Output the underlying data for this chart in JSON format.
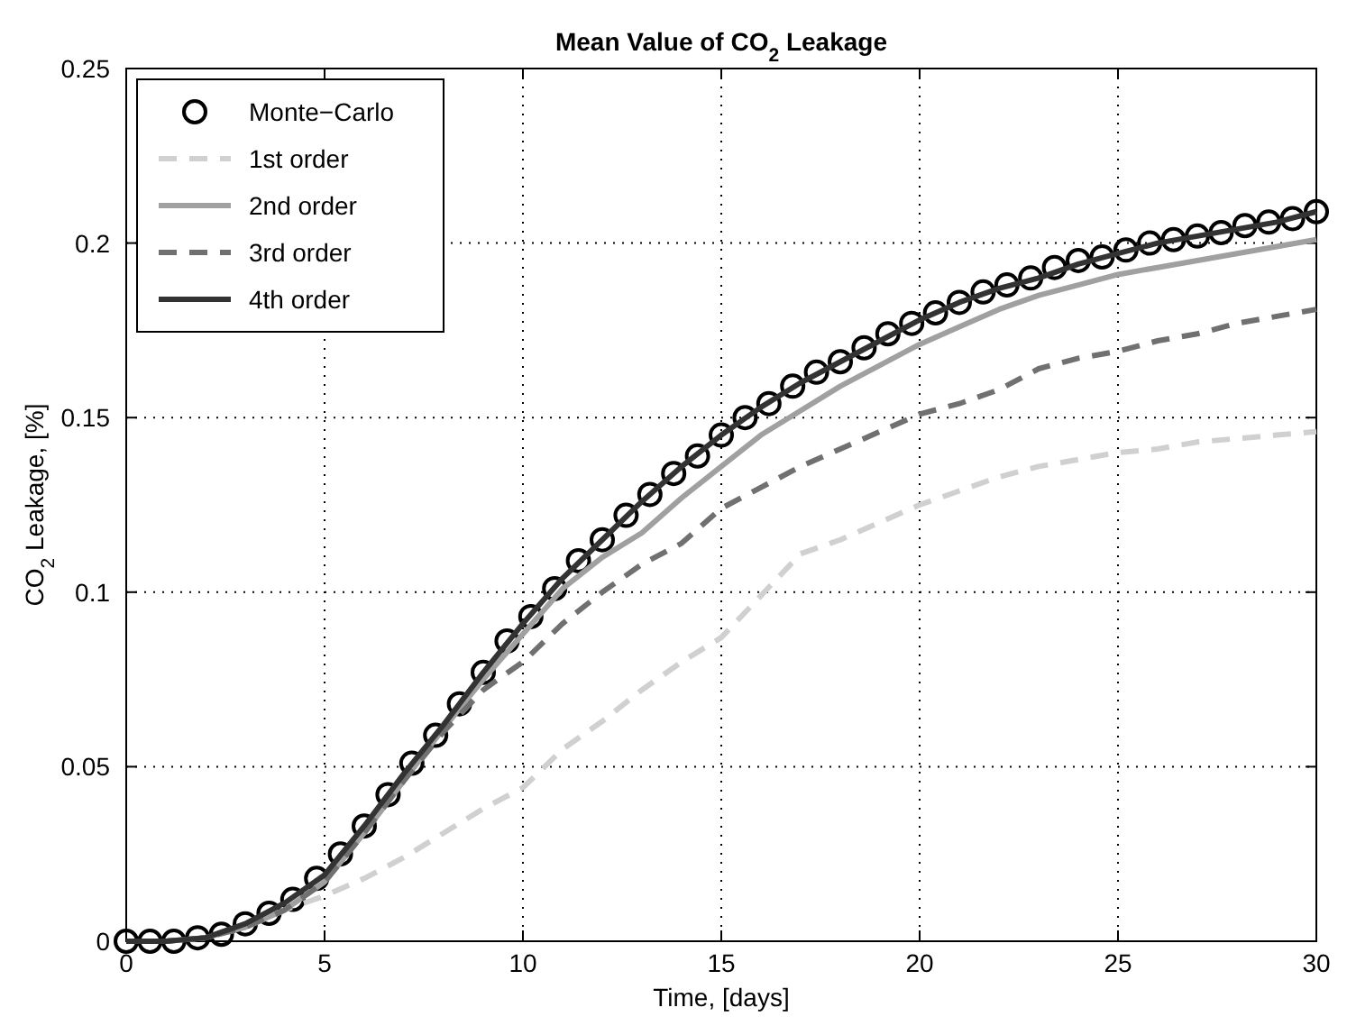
{
  "chart_data": {
    "type": "line",
    "title": "Mean Value of CO$_{2}$ Leakage",
    "xlabel": "Time, [days]",
    "ylabel": "CO$_{2}$ Leakage, [%]",
    "xlim": [
      0,
      30
    ],
    "xticks": [
      0,
      5,
      10,
      15,
      20,
      25,
      30
    ],
    "ylim": [
      0,
      0.25
    ],
    "yticks": [
      0,
      0.05,
      0.1,
      0.15,
      0.2,
      0.25
    ],
    "grid": true,
    "legend": "top left",
    "x": [
      0,
      1,
      2,
      3,
      4,
      5,
      6,
      7,
      8,
      9,
      10,
      11,
      12,
      13,
      14,
      15,
      16,
      17,
      18,
      19,
      20,
      21,
      22,
      23,
      24,
      25,
      26,
      27,
      28,
      29,
      30
    ],
    "series": [
      {
        "name": "Monte−Carlo",
        "type": "scatter",
        "marker": "circle",
        "color": "#000000",
        "x": [
          0,
          0.6,
          1.2,
          1.8,
          2.4,
          3,
          3.6,
          4.2,
          4.8,
          5.4,
          6,
          6.6,
          7.2,
          7.8,
          8.4,
          9,
          9.6,
          10.2,
          10.8,
          11.4,
          12,
          12.6,
          13.2,
          13.8,
          14.4,
          15,
          15.6,
          16.2,
          16.8,
          17.4,
          18,
          18.6,
          19.2,
          19.8,
          20.4,
          21,
          21.6,
          22.2,
          22.8,
          23.4,
          24,
          24.6,
          25.2,
          25.8,
          26.4,
          27,
          27.6,
          28.2,
          28.8,
          29.4,
          30
        ],
        "values": [
          0,
          0,
          0,
          0.001,
          0.002,
          0.005,
          0.008,
          0.012,
          0.018,
          0.025,
          0.033,
          0.042,
          0.051,
          0.059,
          0.068,
          0.077,
          0.086,
          0.093,
          0.101,
          0.109,
          0.115,
          0.122,
          0.128,
          0.134,
          0.139,
          0.145,
          0.15,
          0.154,
          0.159,
          0.163,
          0.166,
          0.17,
          0.174,
          0.177,
          0.18,
          0.183,
          0.186,
          0.188,
          0.19,
          0.193,
          0.195,
          0.196,
          0.198,
          0.2,
          0.201,
          0.202,
          0.203,
          0.205,
          0.206,
          0.207,
          0.209
        ]
      },
      {
        "name": "1st order",
        "color": "#d0d0d0",
        "line_style": "dashed",
        "values": [
          0,
          0,
          0.001,
          0.004,
          0.009,
          0.013,
          0.018,
          0.024,
          0.031,
          0.038,
          0.044,
          0.055,
          0.063,
          0.072,
          0.08,
          0.087,
          0.099,
          0.111,
          0.115,
          0.12,
          0.125,
          0.129,
          0.133,
          0.136,
          0.138,
          0.14,
          0.141,
          0.143,
          0.144,
          0.145,
          0.146
        ]
      },
      {
        "name": "2nd order",
        "color": "#a0a0a0",
        "line_style": "solid",
        "values": [
          0,
          0,
          0.001,
          0.004,
          0.009,
          0.017,
          0.031,
          0.046,
          0.061,
          0.075,
          0.088,
          0.101,
          0.11,
          0.117,
          0.127,
          0.136,
          0.145,
          0.152,
          0.159,
          0.165,
          0.171,
          0.176,
          0.181,
          0.185,
          0.188,
          0.191,
          0.193,
          0.195,
          0.197,
          0.199,
          0.201
        ]
      },
      {
        "name": "3rd order",
        "color": "#707070",
        "line_style": "dashed",
        "values": [
          0,
          0,
          0.001,
          0.004,
          0.009,
          0.017,
          0.031,
          0.046,
          0.06,
          0.072,
          0.08,
          0.091,
          0.1,
          0.108,
          0.114,
          0.124,
          0.13,
          0.136,
          0.141,
          0.146,
          0.151,
          0.154,
          0.158,
          0.164,
          0.167,
          0.169,
          0.172,
          0.174,
          0.177,
          0.179,
          0.181
        ]
      },
      {
        "name": "4th order",
        "color": "#333333",
        "line_style": "solid",
        "values": [
          0,
          0,
          0.001,
          0.005,
          0.011,
          0.019,
          0.033,
          0.048,
          0.062,
          0.077,
          0.091,
          0.104,
          0.115,
          0.126,
          0.136,
          0.145,
          0.153,
          0.16,
          0.166,
          0.172,
          0.178,
          0.183,
          0.187,
          0.19,
          0.194,
          0.197,
          0.2,
          0.202,
          0.204,
          0.206,
          0.209
        ]
      }
    ]
  }
}
